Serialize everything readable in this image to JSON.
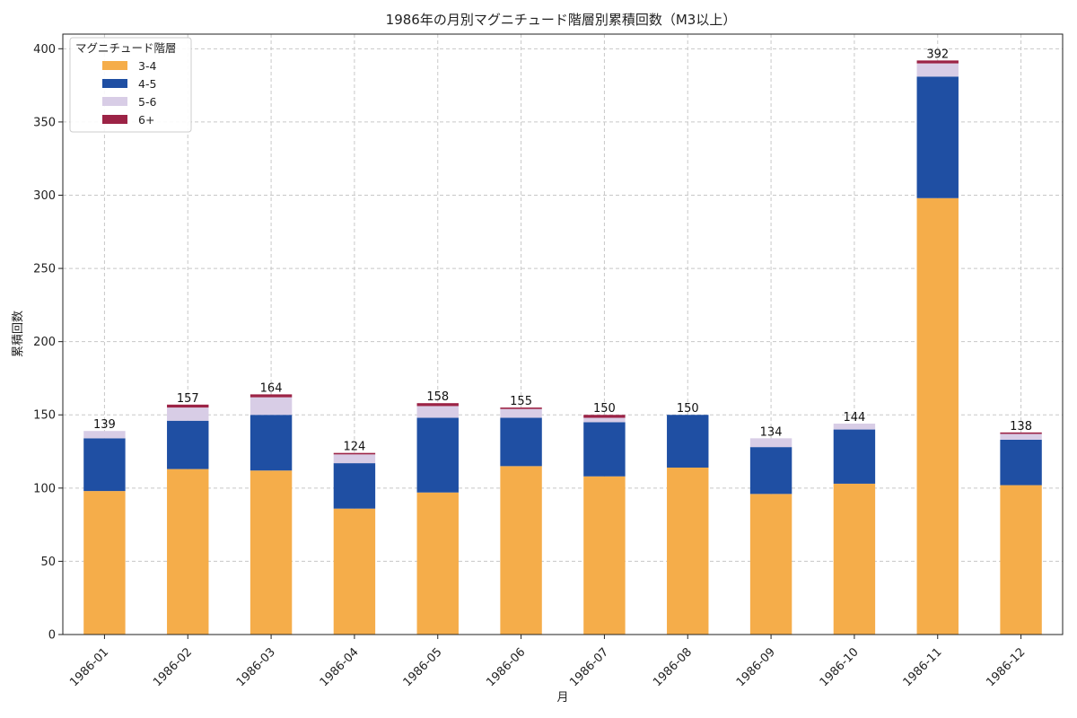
{
  "chart_data": {
    "type": "bar",
    "stacked": true,
    "title": "1986年の月別マグニチュード階層別累積回数（M3以上）",
    "xlabel": "月",
    "ylabel": "累積回数",
    "ylim": [
      0,
      410
    ],
    "yticks": [
      0,
      50,
      100,
      150,
      200,
      250,
      300,
      350,
      400
    ],
    "grid": true,
    "legend": {
      "title": "マグニチュード階層",
      "placement": "top-left"
    },
    "categories": [
      "1986-01",
      "1986-02",
      "1986-03",
      "1986-04",
      "1986-05",
      "1986-06",
      "1986-07",
      "1986-08",
      "1986-09",
      "1986-10",
      "1986-11",
      "1986-12"
    ],
    "series": [
      {
        "name": "3-4",
        "color": "#f5ad4a",
        "values": [
          98,
          113,
          112,
          86,
          97,
          115,
          108,
          114,
          96,
          103,
          298,
          102
        ]
      },
      {
        "name": "4-5",
        "color": "#1f4fa3",
        "values": [
          36,
          33,
          38,
          31,
          51,
          33,
          37,
          36,
          32,
          37,
          83,
          31
        ]
      },
      {
        "name": "5-6",
        "color": "#d8cde6",
        "values": [
          5,
          9,
          12,
          6,
          8,
          6,
          3,
          0,
          6,
          4,
          9,
          4
        ]
      },
      {
        "name": "6+",
        "color": "#9c2346",
        "values": [
          0,
          2,
          2,
          1,
          2,
          1,
          2,
          0,
          0,
          0,
          2,
          1
        ]
      }
    ],
    "totals": [
      139,
      157,
      164,
      124,
      158,
      155,
      150,
      150,
      134,
      144,
      392,
      138
    ]
  }
}
